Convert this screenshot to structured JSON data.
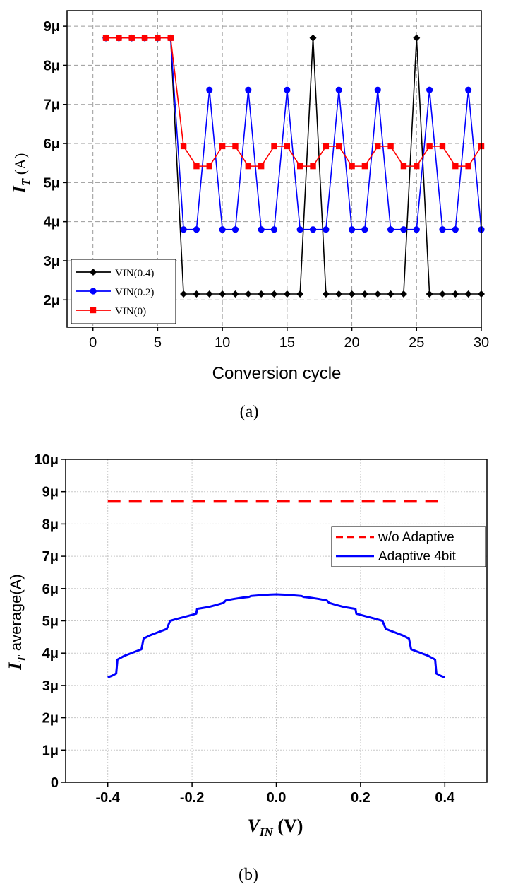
{
  "chart_data": [
    {
      "type": "line",
      "panel_label": "(a)",
      "xlabel": "Conversion cycle",
      "ylabel_main": "I",
      "ylabel_sub": "T",
      "ylabel_unit": " (A)",
      "xlim": [
        -2,
        30
      ],
      "ylim": [
        1.3,
        9.4
      ],
      "xticks": [
        0,
        5,
        10,
        15,
        20,
        25,
        30
      ],
      "xtick_labels": [
        "0",
        "5",
        "10",
        "15",
        "20",
        "25",
        "30"
      ],
      "yticks": [
        2,
        3,
        4,
        5,
        6,
        7,
        8,
        9
      ],
      "ytick_labels": [
        "2μ",
        "3μ",
        "4μ",
        "5μ",
        "6μ",
        "7μ",
        "8μ",
        "9μ"
      ],
      "grid": true,
      "legend_position": "bottom-left",
      "x": [
        1,
        2,
        3,
        4,
        5,
        6,
        7,
        8,
        9,
        10,
        11,
        12,
        13,
        14,
        15,
        16,
        17,
        18,
        19,
        20,
        21,
        22,
        23,
        24,
        25,
        26,
        27,
        28,
        29,
        30
      ],
      "series": [
        {
          "name": "VIN(0.4)",
          "color": "#000000",
          "marker": "diamond",
          "values": [
            8.7,
            8.7,
            8.7,
            8.7,
            8.7,
            8.7,
            2.15,
            2.15,
            2.15,
            2.15,
            2.15,
            2.15,
            2.15,
            2.15,
            2.15,
            2.15,
            8.7,
            2.15,
            2.15,
            2.15,
            2.15,
            2.15,
            2.15,
            2.15,
            8.7,
            2.15,
            2.15,
            2.15,
            2.15,
            2.15
          ]
        },
        {
          "name": "VIN(0.2)",
          "color": "#0000ff",
          "marker": "circle",
          "values": [
            8.7,
            8.7,
            8.7,
            8.7,
            8.7,
            8.7,
            3.8,
            3.8,
            7.37,
            3.8,
            3.8,
            7.37,
            3.8,
            3.8,
            7.37,
            3.8,
            3.8,
            3.8,
            7.37,
            3.8,
            3.8,
            7.37,
            3.8,
            3.8,
            3.8,
            7.37,
            3.8,
            3.8,
            7.37,
            3.8
          ]
        },
        {
          "name": "VIN(0)",
          "color": "#ff0000",
          "marker": "square",
          "values": [
            8.7,
            8.7,
            8.7,
            8.7,
            8.7,
            8.7,
            5.93,
            5.42,
            5.42,
            5.93,
            5.93,
            5.42,
            5.42,
            5.93,
            5.93,
            5.42,
            5.42,
            5.93,
            5.93,
            5.42,
            5.42,
            5.93,
            5.93,
            5.42,
            5.42,
            5.93,
            5.93,
            5.42,
            5.42,
            5.93
          ]
        }
      ]
    },
    {
      "type": "line",
      "panel_label": "(b)",
      "xlabel_main": "V",
      "xlabel_sub": "IN",
      "xlabel_unit": " (V)",
      "ylabel_main": "I",
      "ylabel_sub": "T",
      "ylabel_unit": "  average(A)",
      "xlim": [
        -0.5,
        0.5
      ],
      "ylim": [
        0,
        10
      ],
      "xticks": [
        -0.4,
        -0.2,
        0.0,
        0.2,
        0.4
      ],
      "xtick_labels": [
        "-0.4",
        "-0.2",
        "0.0",
        "0.2",
        "0.4"
      ],
      "yticks": [
        0,
        1,
        2,
        3,
        4,
        5,
        6,
        7,
        8,
        9,
        10
      ],
      "ytick_labels": [
        "0",
        "1μ",
        "2μ",
        "3μ",
        "4μ",
        "5μ",
        "6μ",
        "7μ",
        "8μ",
        "9μ",
        "10μ"
      ],
      "grid": true,
      "legend_position": "top-right",
      "series": [
        {
          "name": "w/o Adaptive",
          "color": "#ff0000",
          "style": "dashed",
          "x": [
            -0.4,
            0.4
          ],
          "values": [
            8.7,
            8.7
          ]
        },
        {
          "name": "Adaptive 4bit",
          "color": "#0000ff",
          "style": "solid",
          "x": [
            -0.4,
            -0.39,
            -0.38,
            -0.377,
            -0.36,
            -0.34,
            -0.32,
            -0.315,
            -0.3,
            -0.28,
            -0.26,
            -0.252,
            -0.23,
            -0.21,
            -0.19,
            -0.188,
            -0.16,
            -0.14,
            -0.125,
            -0.12,
            -0.1,
            -0.08,
            -0.065,
            -0.06,
            -0.04,
            -0.02,
            0.0,
            0.02,
            0.04,
            0.06,
            0.065,
            0.08,
            0.1,
            0.12,
            0.125,
            0.14,
            0.16,
            0.188,
            0.19,
            0.21,
            0.23,
            0.252,
            0.26,
            0.28,
            0.3,
            0.315,
            0.32,
            0.34,
            0.36,
            0.377,
            0.38,
            0.39,
            0.4
          ],
          "values": [
            3.25,
            3.3,
            3.37,
            3.8,
            3.92,
            4.02,
            4.12,
            4.45,
            4.55,
            4.65,
            4.75,
            5.0,
            5.08,
            5.15,
            5.22,
            5.37,
            5.43,
            5.5,
            5.56,
            5.63,
            5.68,
            5.72,
            5.74,
            5.77,
            5.79,
            5.81,
            5.82,
            5.81,
            5.79,
            5.77,
            5.74,
            5.72,
            5.68,
            5.63,
            5.56,
            5.5,
            5.43,
            5.37,
            5.22,
            5.15,
            5.08,
            5.0,
            4.75,
            4.65,
            4.55,
            4.45,
            4.12,
            4.02,
            3.92,
            3.8,
            3.37,
            3.3,
            3.25
          ]
        }
      ]
    }
  ]
}
